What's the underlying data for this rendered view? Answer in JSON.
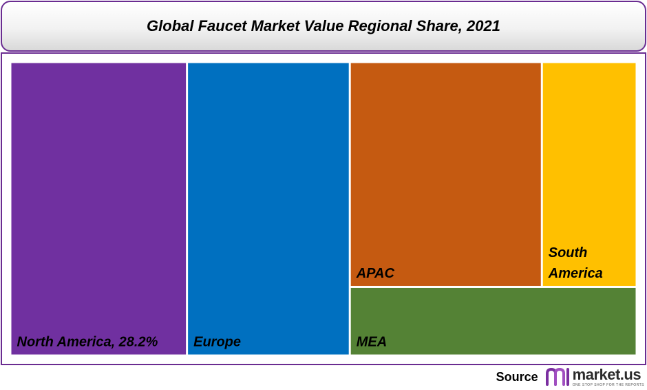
{
  "title": "Global Faucet Market Value Regional Share, 2021",
  "chart_data": {
    "type": "treemap",
    "title": "Global Faucet Market Value Regional Share, 2021",
    "items": [
      {
        "label": "North America, 28.2%",
        "value": 28.2,
        "color": "#7030a0"
      },
      {
        "label": "Europe",
        "value": 26.0,
        "color": "#0070c0"
      },
      {
        "label": "APAC",
        "value": 23.5,
        "color": "#c55a11"
      },
      {
        "label": "South America",
        "label_lines": [
          "South",
          "America"
        ],
        "value": 11.6,
        "color": "#ffc000"
      },
      {
        "label": "MEA",
        "value": 10.7,
        "color": "#548235"
      }
    ]
  },
  "footer": {
    "source_label": "Source",
    "logo_name": "market.us",
    "logo_tagline": "ONE STOP SHOP FOR THE REPORTS",
    "logo_colors": [
      "#7a2ea0",
      "#a04fc0"
    ]
  }
}
